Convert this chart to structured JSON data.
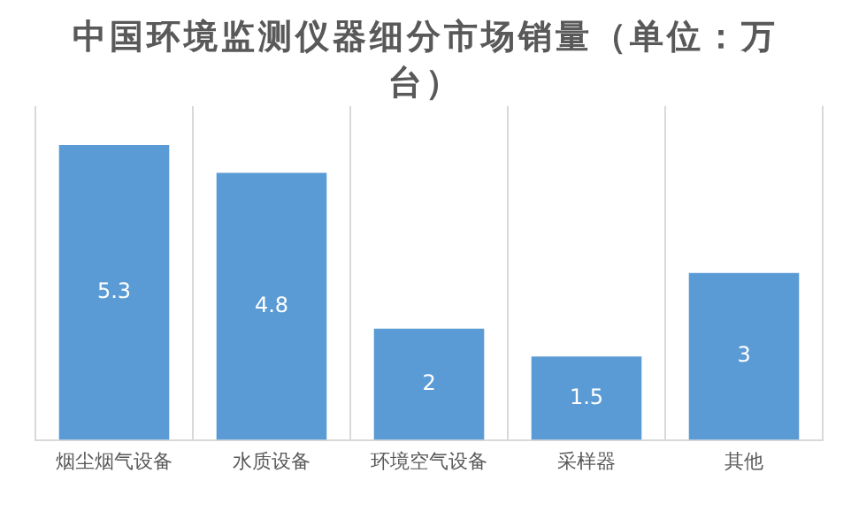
{
  "chart_data": {
    "type": "bar",
    "title": "中国环境监测仪器细分市场销量（单位：万台）",
    "categories": [
      "烟尘烟气设备",
      "水质设备",
      "环境空气设备",
      "采样器",
      "其他"
    ],
    "values": [
      5.3,
      4.8,
      2,
      1.5,
      3
    ],
    "color": "#5b9bd5",
    "ylim": [
      0,
      6
    ],
    "grid": "x",
    "data_labels": true
  }
}
